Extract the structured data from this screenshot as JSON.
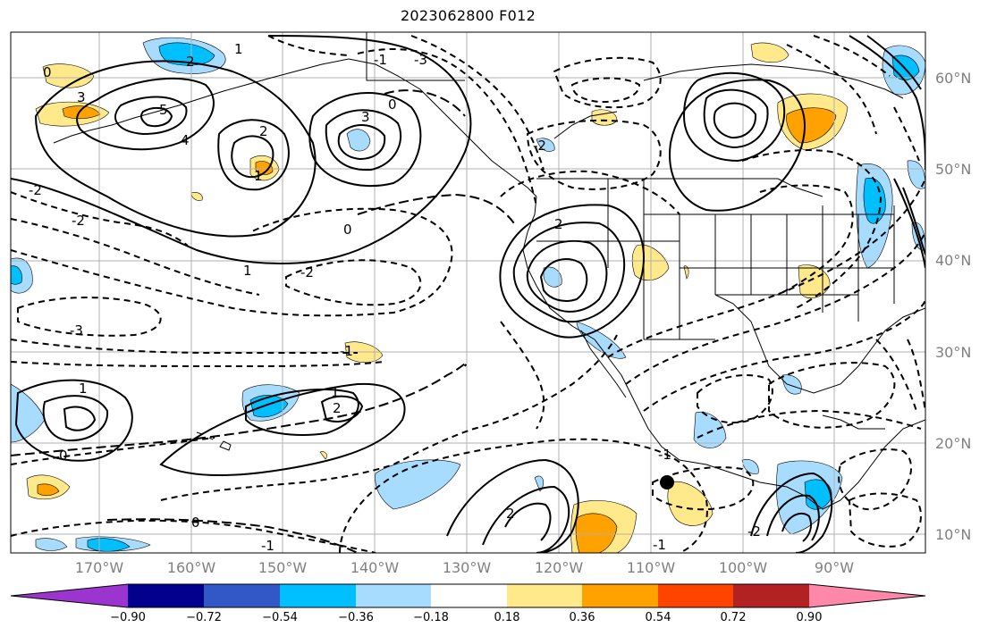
{
  "title": "2023062800 F012",
  "map": {
    "region": "Northeast Pacific and North America",
    "lat_labels": [
      "60°N",
      "50°N",
      "40°N",
      "30°N",
      "20°N",
      "10°N"
    ],
    "lon_labels": [
      "170°W",
      "160°W",
      "150°W",
      "140°W",
      "130°W",
      "120°W",
      "110°W",
      "100°W",
      "90°W"
    ],
    "contour_labels": [
      "-3",
      "2",
      "1",
      "-1",
      "0",
      "3",
      "5",
      "4",
      "-2",
      "1",
      "2",
      "-2",
      "-3",
      "1",
      "-2",
      "0",
      "-1",
      "3",
      "0",
      "2",
      "-1",
      "2",
      "1",
      "0",
      "-2",
      "1",
      "2",
      "0",
      "-1",
      "-2",
      "-1"
    ],
    "contour_line_color": "#000000",
    "grid_color": "#aaaaaa",
    "coast_color": "#000000",
    "marker_color": "#000000"
  },
  "colorbar": {
    "ticks": [
      "−0.90",
      "−0.72",
      "−0.54",
      "−0.36",
      "−0.18",
      "0.18",
      "0.36",
      "0.54",
      "0.72",
      "0.90"
    ],
    "colors": [
      "#9c35cf",
      "#02008c",
      "#3258c8",
      "#00bfff",
      "#a8dcff",
      "#ffffff",
      "#ffe98a",
      "#ffa200",
      "#ff4400",
      "#b22222",
      "#ff88aa"
    ],
    "extend": "both"
  }
}
